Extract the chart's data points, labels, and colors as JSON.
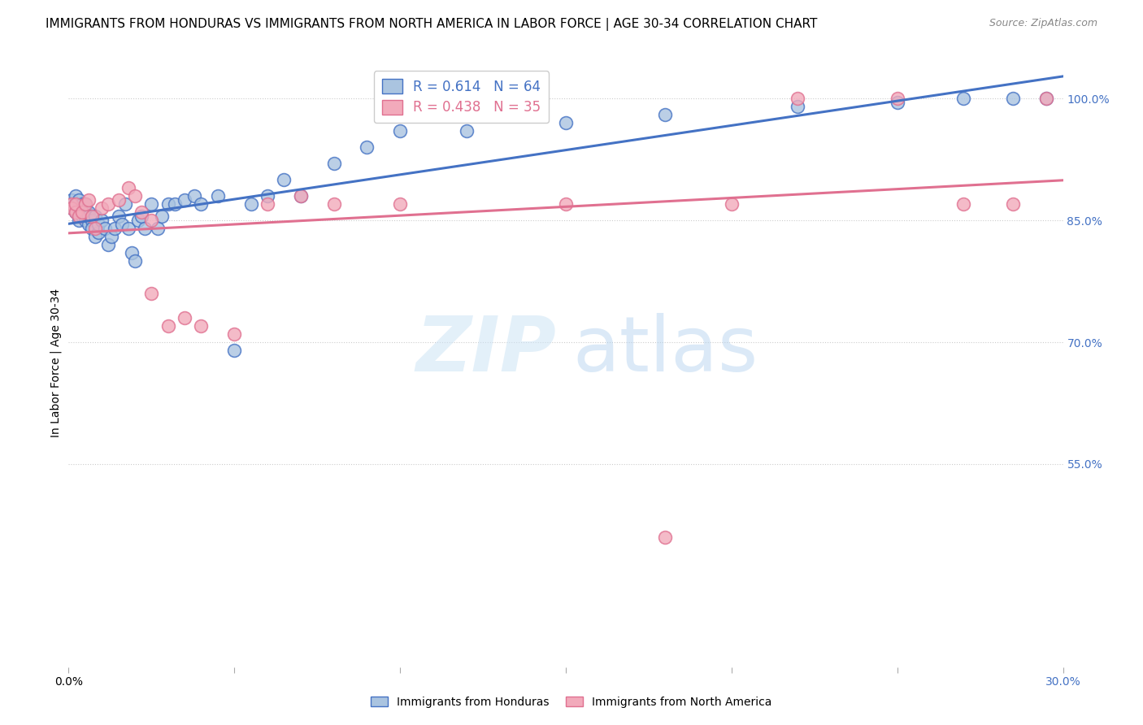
{
  "title": "IMMIGRANTS FROM HONDURAS VS IMMIGRANTS FROM NORTH AMERICA IN LABOR FORCE | AGE 30-34 CORRELATION CHART",
  "source": "Source: ZipAtlas.com",
  "ylabel": "In Labor Force | Age 30-34",
  "xlim": [
    0.0,
    0.3
  ],
  "ylim": [
    0.3,
    1.05
  ],
  "r_honduras": 0.614,
  "n_honduras": 64,
  "r_north_america": 0.438,
  "n_north_america": 35,
  "color_honduras": "#aac4e0",
  "color_north_america": "#f2aabb",
  "trendline_color_honduras": "#4472c4",
  "trendline_color_north_america": "#e07090",
  "grid_color": "#cccccc",
  "background_color": "#ffffff",
  "title_fontsize": 11,
  "axis_label_fontsize": 10,
  "tick_fontsize": 10,
  "legend_fontsize": 12,
  "ytick_vals": [
    0.55,
    0.7,
    0.85,
    1.0
  ],
  "ytick_labels": [
    "55.0%",
    "70.0%",
    "85.0%",
    "100.0%"
  ],
  "xtick_vals": [
    0.0,
    0.05,
    0.1,
    0.15,
    0.2,
    0.25,
    0.3
  ],
  "xtick_color": "#4472c4",
  "honduras_x": [
    0.001,
    0.001,
    0.001,
    0.002,
    0.002,
    0.002,
    0.003,
    0.003,
    0.003,
    0.003,
    0.004,
    0.004,
    0.004,
    0.005,
    0.005,
    0.005,
    0.006,
    0.006,
    0.006,
    0.007,
    0.007,
    0.008,
    0.008,
    0.009,
    0.009,
    0.01,
    0.011,
    0.012,
    0.013,
    0.014,
    0.015,
    0.016,
    0.017,
    0.018,
    0.019,
    0.02,
    0.021,
    0.022,
    0.023,
    0.025,
    0.027,
    0.028,
    0.03,
    0.032,
    0.035,
    0.038,
    0.04,
    0.045,
    0.05,
    0.055,
    0.06,
    0.065,
    0.07,
    0.08,
    0.09,
    0.1,
    0.12,
    0.15,
    0.18,
    0.22,
    0.25,
    0.27,
    0.285,
    0.295
  ],
  "honduras_y": [
    0.87,
    0.875,
    0.865,
    0.86,
    0.87,
    0.88,
    0.855,
    0.865,
    0.85,
    0.875,
    0.87,
    0.86,
    0.855,
    0.85,
    0.865,
    0.87,
    0.845,
    0.86,
    0.855,
    0.85,
    0.84,
    0.83,
    0.855,
    0.835,
    0.845,
    0.85,
    0.84,
    0.82,
    0.83,
    0.84,
    0.855,
    0.845,
    0.87,
    0.84,
    0.81,
    0.8,
    0.85,
    0.855,
    0.84,
    0.87,
    0.84,
    0.855,
    0.87,
    0.87,
    0.875,
    0.88,
    0.87,
    0.88,
    0.69,
    0.87,
    0.88,
    0.9,
    0.88,
    0.92,
    0.94,
    0.96,
    0.96,
    0.97,
    0.98,
    0.99,
    0.995,
    1.0,
    1.0,
    1.0
  ],
  "north_america_x": [
    0.001,
    0.001,
    0.002,
    0.002,
    0.003,
    0.004,
    0.005,
    0.006,
    0.007,
    0.008,
    0.01,
    0.012,
    0.015,
    0.018,
    0.02,
    0.022,
    0.025,
    0.025,
    0.03,
    0.035,
    0.04,
    0.05,
    0.06,
    0.07,
    0.08,
    0.1,
    0.12,
    0.15,
    0.18,
    0.2,
    0.22,
    0.25,
    0.27,
    0.285,
    0.295
  ],
  "north_america_y": [
    0.87,
    0.865,
    0.86,
    0.87,
    0.855,
    0.86,
    0.87,
    0.875,
    0.855,
    0.84,
    0.865,
    0.87,
    0.875,
    0.89,
    0.88,
    0.86,
    0.85,
    0.76,
    0.72,
    0.73,
    0.72,
    0.71,
    0.87,
    0.88,
    0.87,
    0.87,
    0.99,
    0.87,
    0.46,
    0.87,
    1.0,
    1.0,
    0.87,
    0.87,
    1.0
  ]
}
